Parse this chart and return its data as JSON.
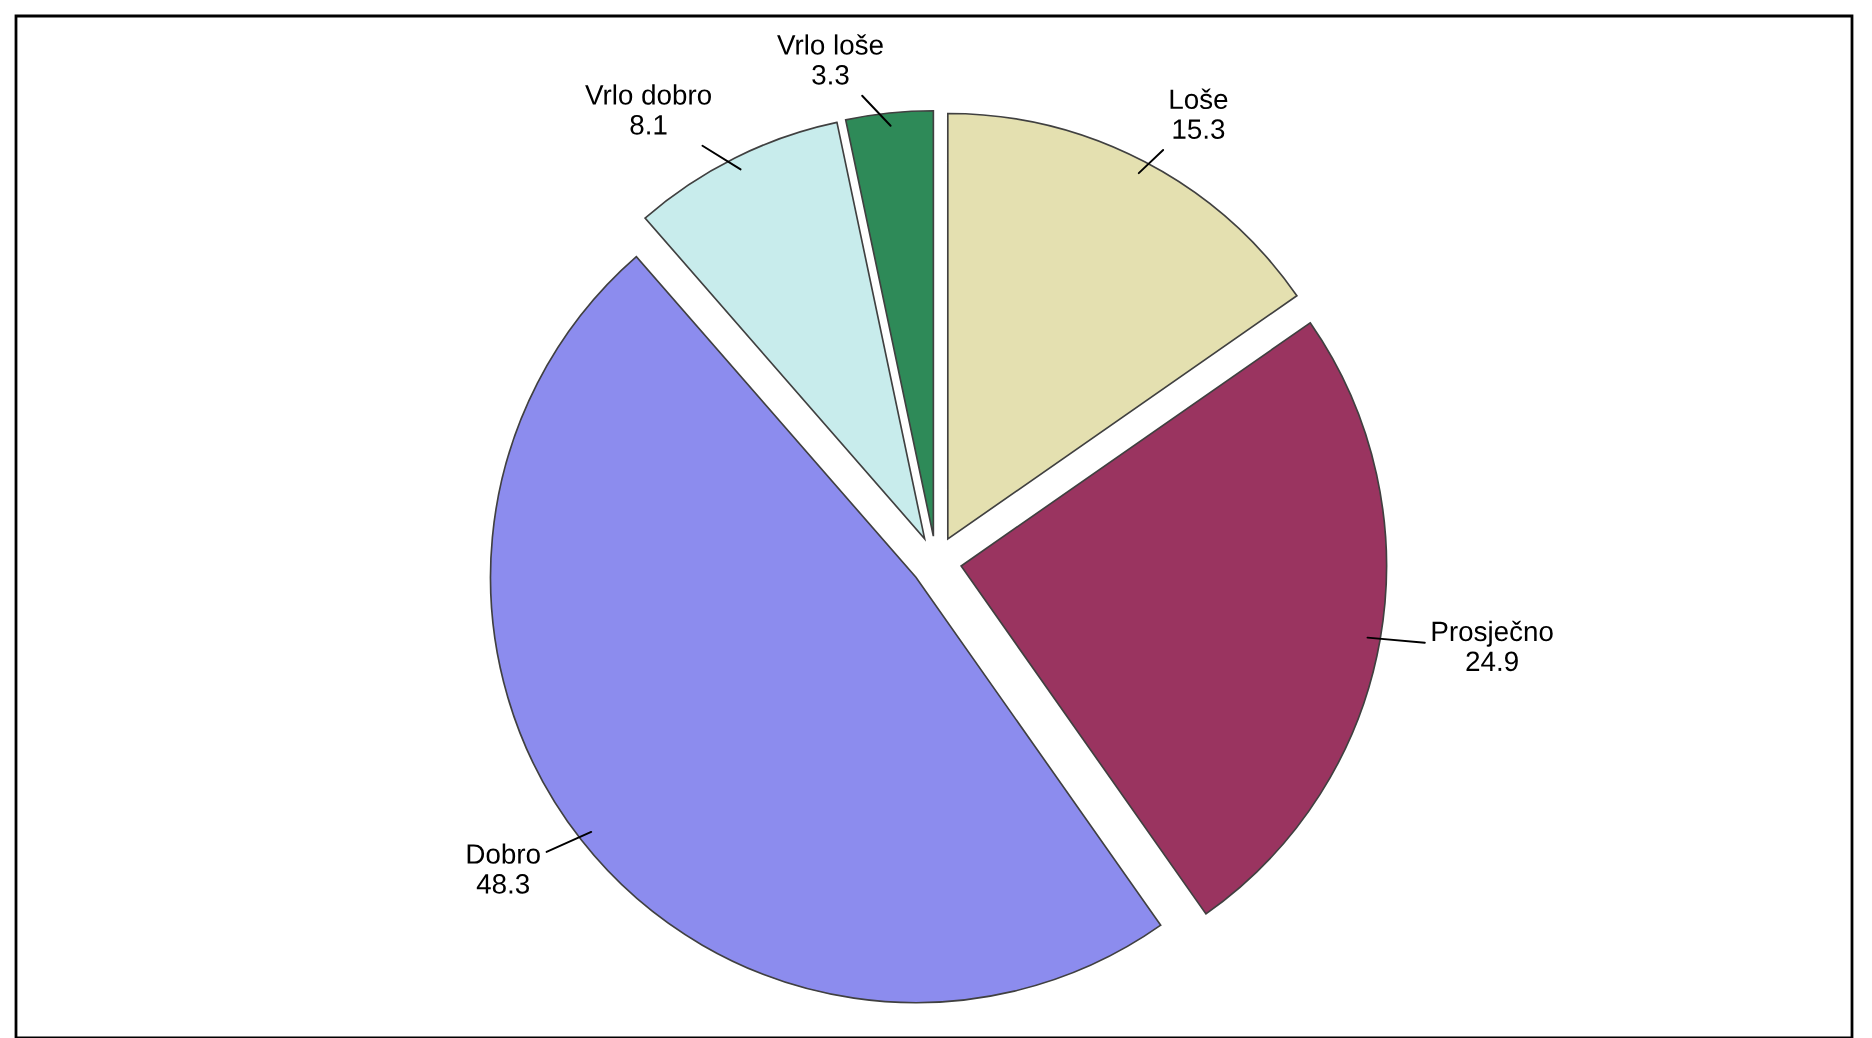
{
  "chart_data": {
    "type": "pie",
    "categories": [
      "Loše",
      "Prosječno",
      "Dobro",
      "Vrlo dobro",
      "Vrlo loše"
    ],
    "values": [
      15.3,
      24.9,
      48.3,
      8.1,
      3.3
    ],
    "colors": [
      "#e4e0b0",
      "#9a3460",
      "#8c8cee",
      "#c8ecec",
      "#2e8a58"
    ],
    "data_labels": true
  }
}
